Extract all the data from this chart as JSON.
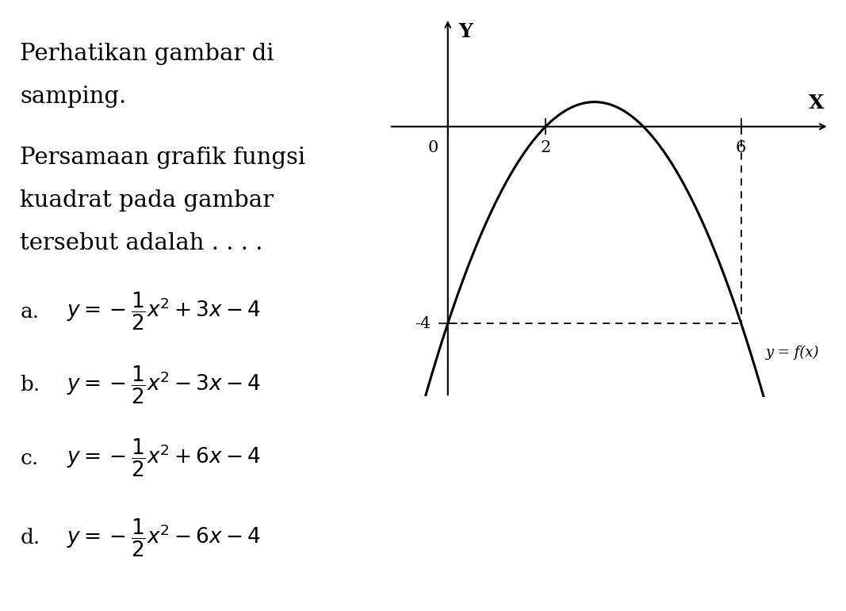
{
  "graph": {
    "xlim": [
      -1.2,
      7.8
    ],
    "ylim": [
      -5.5,
      2.2
    ],
    "x_ticks": [
      0,
      2,
      6
    ],
    "y_ticks": [
      -4
    ],
    "x_labels": [
      "0",
      "2",
      "6"
    ],
    "y_labels": [
      "-4"
    ],
    "curve_color": "black",
    "curve_linewidth": 2.2,
    "dashed_color": "black",
    "dashed_linewidth": 1.3,
    "label_fx": "y = f(x)",
    "a": -0.5,
    "b": 3.0,
    "c": -4.0,
    "x_range_start": -0.6,
    "x_range_end": 7.5
  },
  "font_size_text": 21,
  "font_size_option": 19,
  "font_size_axis": 15,
  "background_color": "white",
  "text_lines": [
    "Perhatikan gambar di",
    "samping.",
    "",
    "Persamaan grafik fungsi",
    "kuadrat pada gambar",
    "tersebut adalah . . . ."
  ],
  "options": [
    {
      "label": "a.",
      "formula": "$y = -\\dfrac{1}{2}x^2 + 3x - 4$"
    },
    {
      "label": "b.",
      "formula": "$y = -\\dfrac{1}{2}x^2 - 3x - 4$"
    },
    {
      "label": "c.",
      "formula": "$y = -\\dfrac{1}{2}x^2 + 6x - 4$"
    },
    {
      "label": "d.",
      "formula": "$y = -\\dfrac{1}{2}x^2 - 6x - 4$"
    }
  ]
}
